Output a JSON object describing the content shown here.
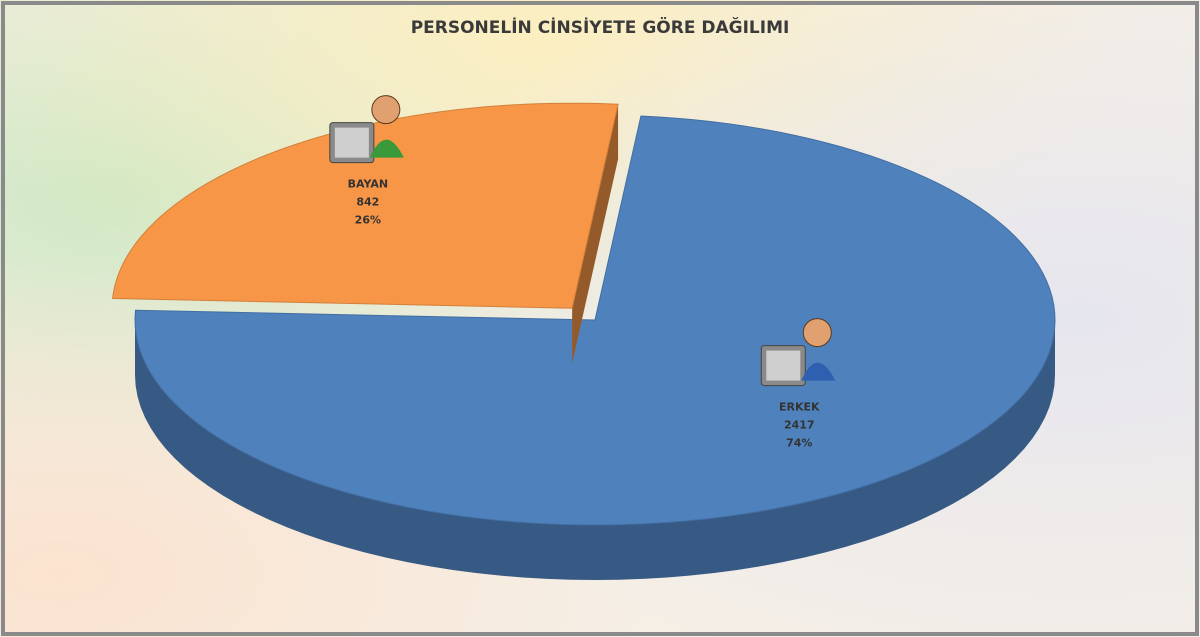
{
  "chart_data": {
    "type": "pie",
    "title": "PERSONELİN CİNSİYETE GÖRE DAĞILIMI",
    "categories": [
      "ERKEK",
      "BAYAN"
    ],
    "values": [
      2417,
      842
    ],
    "percentages": [
      74,
      26
    ],
    "percentage_labels": [
      "74%",
      "26%"
    ],
    "colors": [
      "#4f81bd",
      "#f79646"
    ],
    "exploded": [
      false,
      true
    ],
    "three_d": true
  }
}
